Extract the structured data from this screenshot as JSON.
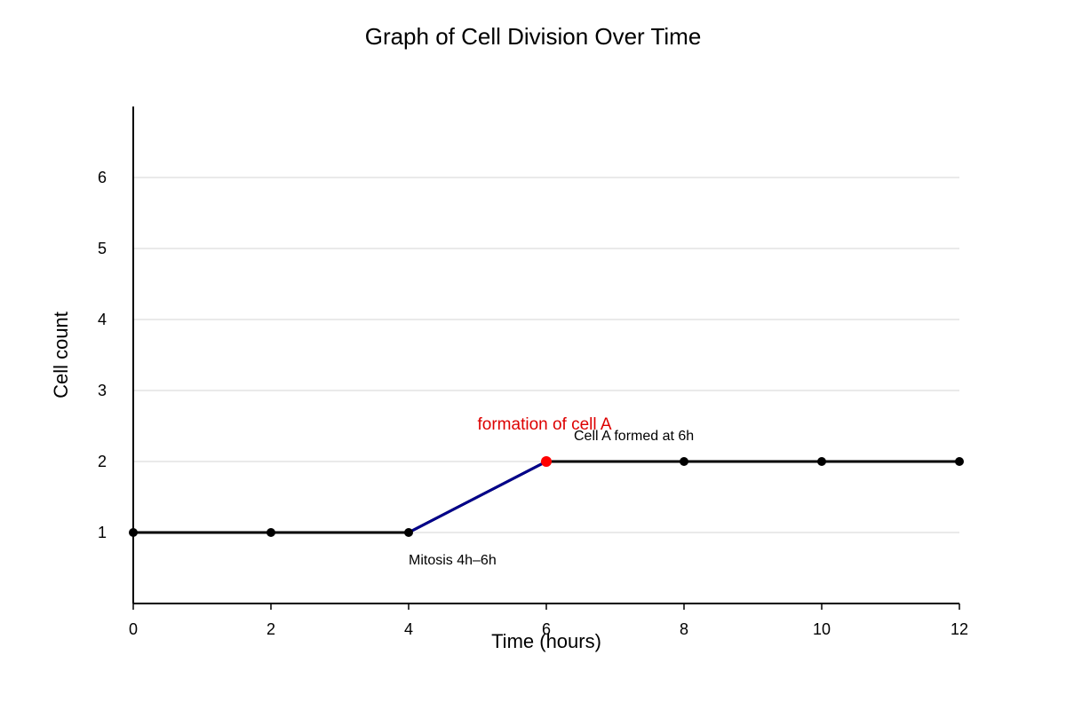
{
  "chart_data": {
    "type": "line",
    "title": "Graph of Cell Division Over Time",
    "xlabel": "Time (hours)",
    "ylabel": "Cell count",
    "xlim": [
      0,
      12
    ],
    "ylim": [
      0,
      7
    ],
    "x_ticks": [
      0,
      2,
      4,
      6,
      8,
      10,
      12
    ],
    "y_ticks": [
      1,
      2,
      3,
      4,
      5,
      6
    ],
    "grid": "horizontal",
    "series": [
      {
        "x": [
          0,
          2,
          4,
          6,
          8,
          10,
          12
        ],
        "y": [
          1,
          1,
          1,
          2,
          2,
          2,
          2
        ],
        "color": "#000000"
      }
    ],
    "highlight_segment": {
      "x": [
        4,
        6
      ],
      "y": [
        1,
        2
      ],
      "color": "#00008b"
    },
    "highlight_point": {
      "x": 6,
      "y": 2,
      "color": "#ff0000"
    },
    "annotations": [
      {
        "text": "formation of cell A",
        "x": 5,
        "y": 2.45,
        "color": "#dd0000",
        "style": "red"
      },
      {
        "text": "Cell A formed at 6h",
        "x": 6.4,
        "y": 2.3,
        "color": "#000000",
        "style": "plain"
      },
      {
        "text": "Mitosis 4h–6h",
        "x": 4,
        "y": 0.55,
        "color": "#000000",
        "style": "plain"
      }
    ]
  }
}
